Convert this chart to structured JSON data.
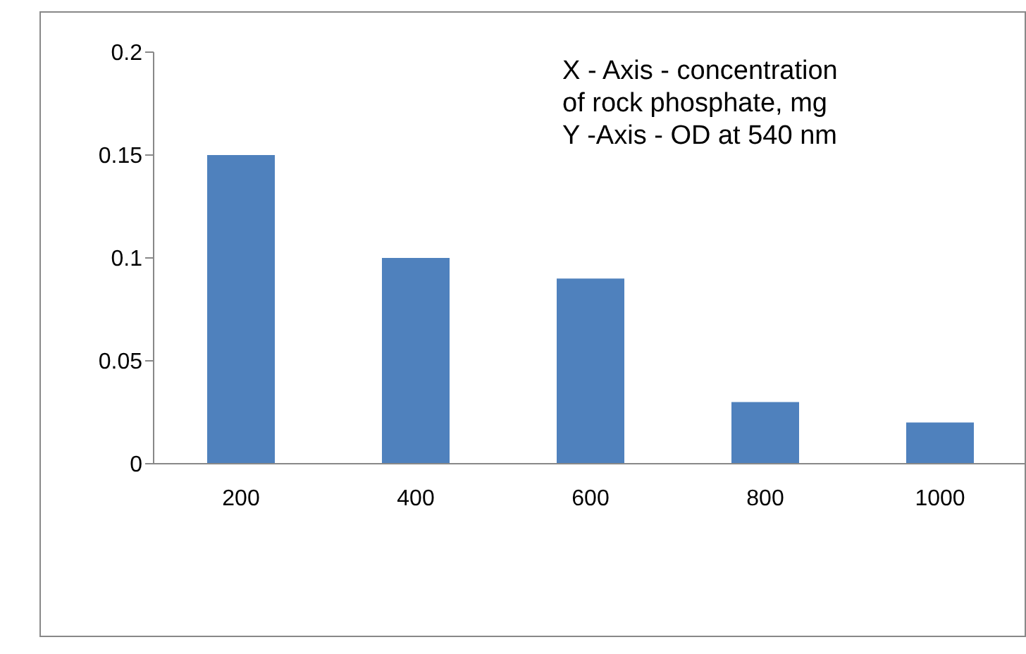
{
  "chart_data": {
    "type": "bar",
    "categories": [
      "200",
      "400",
      "600",
      "800",
      "1000"
    ],
    "values": [
      0.15,
      0.1,
      0.09,
      0.03,
      0.02
    ],
    "color": "#4f81bd",
    "ylim": [
      0,
      0.2
    ],
    "yticks": [
      0,
      0.05,
      0.1,
      0.15,
      0.2
    ],
    "annotations": [
      "X - Axis - concentration of rock phosphate, mg",
      "Y -Axis - OD at 540 nm"
    ]
  }
}
